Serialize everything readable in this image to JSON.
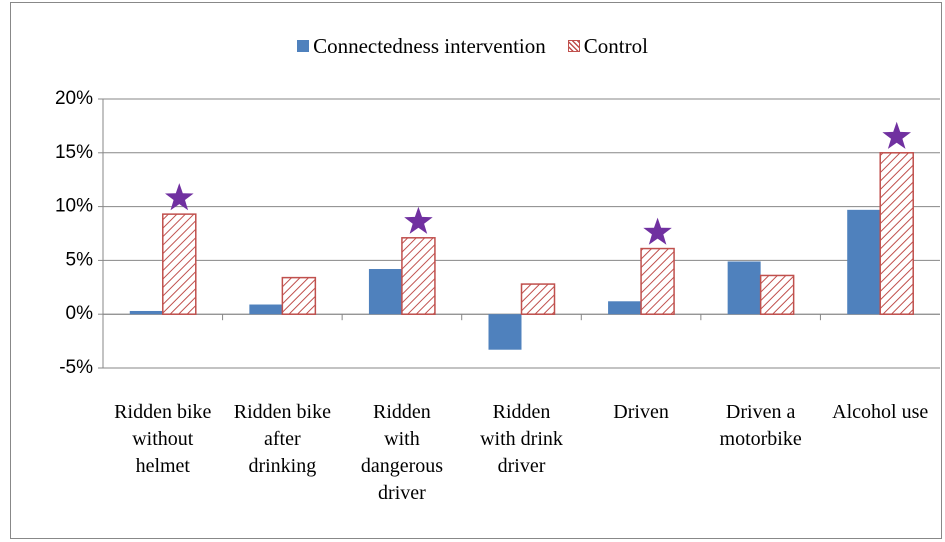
{
  "chart_data": {
    "type": "bar",
    "categories": [
      "Ridden bike without helmet",
      "Ridden bike after drinking",
      "Ridden with dangerous driver",
      "Ridden with drink driver",
      "Driven",
      "Driven a motorbike",
      "Alcohol use"
    ],
    "series": [
      {
        "name": "Connectedness intervention",
        "color": "#4f81bd",
        "values": [
          0.3,
          0.9,
          4.2,
          -3.3,
          1.2,
          4.9,
          9.7
        ]
      },
      {
        "name": "Control",
        "color": "#c0504d",
        "pattern": "hatch",
        "values": [
          9.3,
          3.4,
          7.1,
          2.8,
          6.1,
          3.6,
          15.0
        ]
      }
    ],
    "significant": [
      true,
      false,
      true,
      false,
      true,
      false,
      true
    ],
    "ylim": [
      -5,
      20
    ],
    "yticks": [
      {
        "value": -5,
        "label": "-5%"
      },
      {
        "value": 0,
        "label": "0%"
      },
      {
        "value": 5,
        "label": "5%"
      },
      {
        "value": 10,
        "label": "10%"
      },
      {
        "value": 15,
        "label": "15%"
      },
      {
        "value": 20,
        "label": "20%"
      }
    ],
    "grid": true,
    "legend": "top"
  }
}
